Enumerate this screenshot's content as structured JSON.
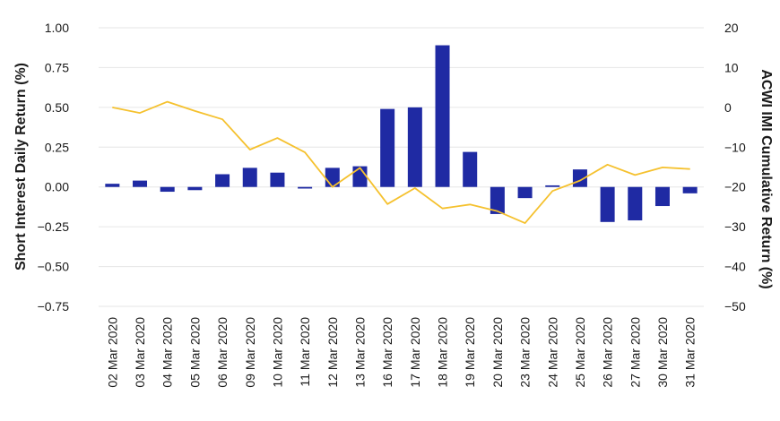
{
  "chart_data": {
    "type": "bar",
    "categories": [
      "02 Mar 2020",
      "03 Mar 2020",
      "04 Mar 2020",
      "05 Mar 2020",
      "06 Mar 2020",
      "09 Mar 2020",
      "10 Mar 2020",
      "11 Mar 2020",
      "12 Mar 2020",
      "13 Mar 2020",
      "16 Mar 2020",
      "17 Mar 2020",
      "18 Mar 2020",
      "19 Mar 2020",
      "20 Mar 2020",
      "23 Mar 2020",
      "24 Mar 2020",
      "25 Mar 2020",
      "26 Mar 2020",
      "27 Mar 2020",
      "30 Mar 2020",
      "31 Mar 2020"
    ],
    "series": [
      {
        "type": "bar",
        "axis": "left",
        "color": "#1f2aa3",
        "values": [
          0.02,
          0.04,
          -0.03,
          -0.02,
          0.08,
          0.12,
          0.09,
          -0.01,
          0.12,
          0.13,
          0.49,
          0.5,
          0.89,
          0.22,
          -0.17,
          -0.07,
          0.01,
          0.11,
          -0.22,
          -0.21,
          -0.12,
          -0.04
        ]
      },
      {
        "type": "line",
        "axis": "right",
        "color": "#f5c12e",
        "values": [
          0.0,
          -1.4,
          1.4,
          -0.9,
          -3.0,
          -10.6,
          -7.7,
          -11.3,
          -20.0,
          -15.2,
          -24.3,
          -20.3,
          -25.4,
          -24.4,
          -26.1,
          -29.1,
          -21.0,
          -18.4,
          -14.4,
          -17.0,
          -15.1,
          -15.5
        ]
      }
    ],
    "title": "",
    "xlabel": "",
    "ylabel": "Short Interest Daily Return (%)",
    "y2label": "ACWI IMI Cumulative Return (%)",
    "ylim": [
      -0.75,
      1.0
    ],
    "yticks": [
      "1.00",
      "0.75",
      "0.50",
      "0.25",
      "0.00",
      "−0.25",
      "−0.50",
      "−0.75"
    ],
    "y2lim": [
      -50,
      20
    ],
    "y2ticks": [
      "20",
      "10",
      "0",
      "−10",
      "−20",
      "−30",
      "−40",
      "−50"
    ],
    "grid": true,
    "legend": "none"
  }
}
